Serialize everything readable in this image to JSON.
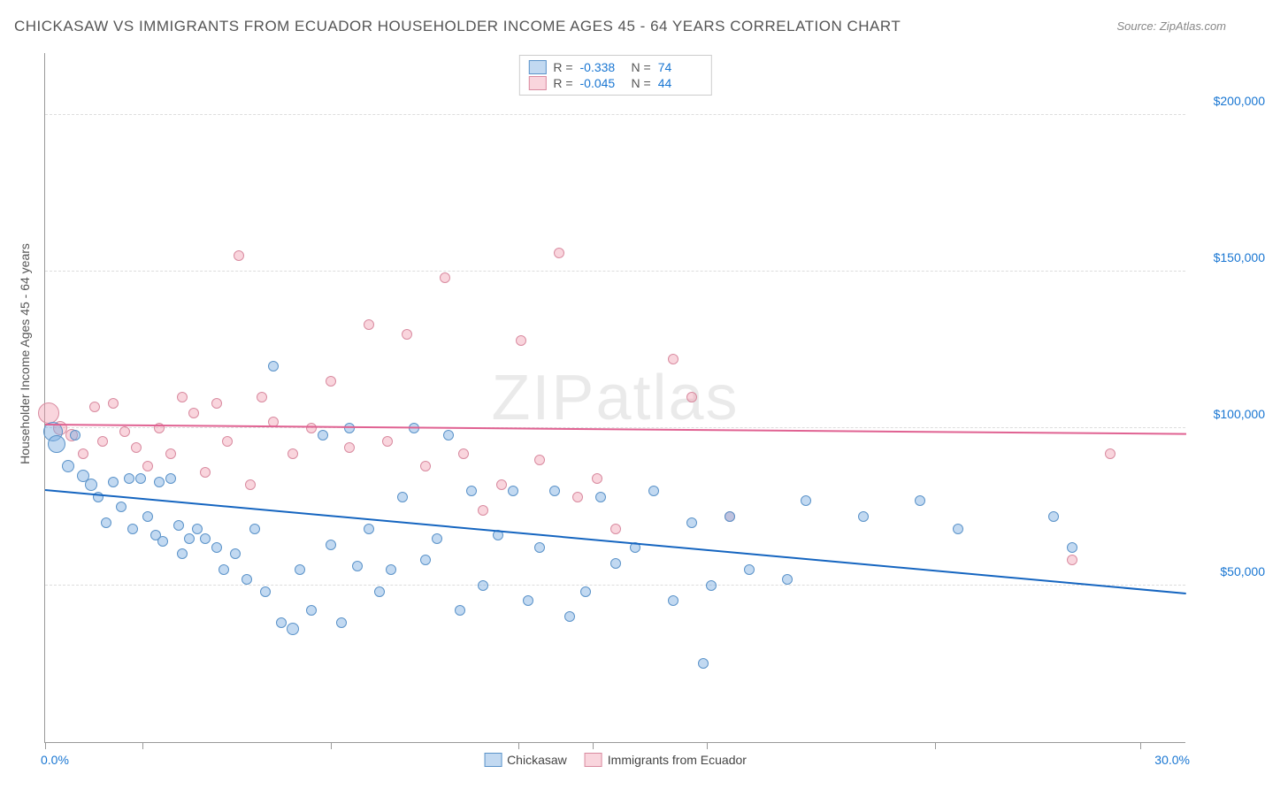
{
  "title": "CHICKASAW VS IMMIGRANTS FROM ECUADOR HOUSEHOLDER INCOME AGES 45 - 64 YEARS CORRELATION CHART",
  "source": "Source: ZipAtlas.com",
  "ylabel": "Householder Income Ages 45 - 64 years",
  "watermark": "ZIPatlas",
  "x": {
    "min": 0.0,
    "max": 30.0,
    "left_label": "0.0%",
    "right_label": "30.0%",
    "tick_positions_pct": [
      0,
      8.5,
      25,
      41.5,
      48,
      58,
      78,
      96
    ]
  },
  "y": {
    "min": 0,
    "max": 220000,
    "gridlines": [
      {
        "value": 50000,
        "label": "$50,000"
      },
      {
        "value": 100000,
        "label": "$100,000"
      },
      {
        "value": 150000,
        "label": "$150,000"
      },
      {
        "value": 200000,
        "label": "$200,000"
      }
    ]
  },
  "series": [
    {
      "name": "Chickasaw",
      "fill": "rgba(120,170,225,0.45)",
      "stroke": "#5b93c9",
      "line_color": "#1565c0",
      "R": "-0.338",
      "N": "74",
      "trend": {
        "y1": 80000,
        "y2": 47000
      },
      "points": [
        {
          "x": 0.2,
          "y": 99000,
          "s": 22
        },
        {
          "x": 0.3,
          "y": 95000,
          "s": 20
        },
        {
          "x": 0.6,
          "y": 88000,
          "s": 14
        },
        {
          "x": 0.8,
          "y": 98000,
          "s": 12
        },
        {
          "x": 1.0,
          "y": 85000,
          "s": 14
        },
        {
          "x": 1.2,
          "y": 82000,
          "s": 14
        },
        {
          "x": 1.4,
          "y": 78000,
          "s": 12
        },
        {
          "x": 1.6,
          "y": 70000,
          "s": 12
        },
        {
          "x": 1.8,
          "y": 83000,
          "s": 12
        },
        {
          "x": 2.0,
          "y": 75000,
          "s": 12
        },
        {
          "x": 2.2,
          "y": 84000,
          "s": 12
        },
        {
          "x": 2.3,
          "y": 68000,
          "s": 12
        },
        {
          "x": 2.5,
          "y": 84000,
          "s": 12
        },
        {
          "x": 2.7,
          "y": 72000,
          "s": 12
        },
        {
          "x": 2.9,
          "y": 66000,
          "s": 12
        },
        {
          "x": 3.0,
          "y": 83000,
          "s": 12
        },
        {
          "x": 3.1,
          "y": 64000,
          "s": 12
        },
        {
          "x": 3.3,
          "y": 84000,
          "s": 12
        },
        {
          "x": 3.5,
          "y": 69000,
          "s": 12
        },
        {
          "x": 3.6,
          "y": 60000,
          "s": 12
        },
        {
          "x": 3.8,
          "y": 65000,
          "s": 12
        },
        {
          "x": 4.0,
          "y": 68000,
          "s": 12
        },
        {
          "x": 4.2,
          "y": 65000,
          "s": 12
        },
        {
          "x": 4.5,
          "y": 62000,
          "s": 12
        },
        {
          "x": 4.7,
          "y": 55000,
          "s": 12
        },
        {
          "x": 5.0,
          "y": 60000,
          "s": 12
        },
        {
          "x": 5.3,
          "y": 52000,
          "s": 12
        },
        {
          "x": 5.5,
          "y": 68000,
          "s": 12
        },
        {
          "x": 5.8,
          "y": 48000,
          "s": 12
        },
        {
          "x": 6.0,
          "y": 120000,
          "s": 12
        },
        {
          "x": 6.2,
          "y": 38000,
          "s": 12
        },
        {
          "x": 6.5,
          "y": 36000,
          "s": 14
        },
        {
          "x": 6.7,
          "y": 55000,
          "s": 12
        },
        {
          "x": 7.0,
          "y": 42000,
          "s": 12
        },
        {
          "x": 7.3,
          "y": 98000,
          "s": 12
        },
        {
          "x": 7.5,
          "y": 63000,
          "s": 12
        },
        {
          "x": 7.8,
          "y": 38000,
          "s": 12
        },
        {
          "x": 8.0,
          "y": 100000,
          "s": 12
        },
        {
          "x": 8.2,
          "y": 56000,
          "s": 12
        },
        {
          "x": 8.5,
          "y": 68000,
          "s": 12
        },
        {
          "x": 8.8,
          "y": 48000,
          "s": 12
        },
        {
          "x": 9.1,
          "y": 55000,
          "s": 12
        },
        {
          "x": 9.4,
          "y": 78000,
          "s": 12
        },
        {
          "x": 9.7,
          "y": 100000,
          "s": 12
        },
        {
          "x": 10.0,
          "y": 58000,
          "s": 12
        },
        {
          "x": 10.3,
          "y": 65000,
          "s": 12
        },
        {
          "x": 10.6,
          "y": 98000,
          "s": 12
        },
        {
          "x": 10.9,
          "y": 42000,
          "s": 12
        },
        {
          "x": 11.2,
          "y": 80000,
          "s": 12
        },
        {
          "x": 11.5,
          "y": 50000,
          "s": 12
        },
        {
          "x": 11.9,
          "y": 66000,
          "s": 12
        },
        {
          "x": 12.3,
          "y": 80000,
          "s": 12
        },
        {
          "x": 12.7,
          "y": 45000,
          "s": 12
        },
        {
          "x": 13.0,
          "y": 62000,
          "s": 12
        },
        {
          "x": 13.4,
          "y": 80000,
          "s": 12
        },
        {
          "x": 13.8,
          "y": 40000,
          "s": 12
        },
        {
          "x": 14.2,
          "y": 48000,
          "s": 12
        },
        {
          "x": 14.6,
          "y": 78000,
          "s": 12
        },
        {
          "x": 15.0,
          "y": 57000,
          "s": 12
        },
        {
          "x": 15.5,
          "y": 62000,
          "s": 12
        },
        {
          "x": 16.0,
          "y": 80000,
          "s": 12
        },
        {
          "x": 16.5,
          "y": 45000,
          "s": 12
        },
        {
          "x": 17.0,
          "y": 70000,
          "s": 12
        },
        {
          "x": 17.3,
          "y": 25000,
          "s": 12
        },
        {
          "x": 17.5,
          "y": 50000,
          "s": 12
        },
        {
          "x": 18.0,
          "y": 72000,
          "s": 12
        },
        {
          "x": 18.5,
          "y": 55000,
          "s": 12
        },
        {
          "x": 19.5,
          "y": 52000,
          "s": 12
        },
        {
          "x": 20.0,
          "y": 77000,
          "s": 12
        },
        {
          "x": 21.5,
          "y": 72000,
          "s": 12
        },
        {
          "x": 23.0,
          "y": 77000,
          "s": 12
        },
        {
          "x": 24.0,
          "y": 68000,
          "s": 12
        },
        {
          "x": 26.5,
          "y": 72000,
          "s": 12
        },
        {
          "x": 27.0,
          "y": 62000,
          "s": 12
        }
      ]
    },
    {
      "name": "Immigrants from Ecuador",
      "fill": "rgba(240,150,170,0.40)",
      "stroke": "#d98ba0",
      "line_color": "#e06292",
      "R": "-0.045",
      "N": "44",
      "trend": {
        "y1": 101000,
        "y2": 98000
      },
      "points": [
        {
          "x": 0.1,
          "y": 105000,
          "s": 24
        },
        {
          "x": 0.4,
          "y": 100000,
          "s": 16
        },
        {
          "x": 0.7,
          "y": 98000,
          "s": 14
        },
        {
          "x": 1.0,
          "y": 92000,
          "s": 12
        },
        {
          "x": 1.3,
          "y": 107000,
          "s": 12
        },
        {
          "x": 1.5,
          "y": 96000,
          "s": 12
        },
        {
          "x": 1.8,
          "y": 108000,
          "s": 12
        },
        {
          "x": 2.1,
          "y": 99000,
          "s": 12
        },
        {
          "x": 2.4,
          "y": 94000,
          "s": 12
        },
        {
          "x": 2.7,
          "y": 88000,
          "s": 12
        },
        {
          "x": 3.0,
          "y": 100000,
          "s": 12
        },
        {
          "x": 3.3,
          "y": 92000,
          "s": 12
        },
        {
          "x": 3.6,
          "y": 110000,
          "s": 12
        },
        {
          "x": 3.9,
          "y": 105000,
          "s": 12
        },
        {
          "x": 4.2,
          "y": 86000,
          "s": 12
        },
        {
          "x": 4.5,
          "y": 108000,
          "s": 12
        },
        {
          "x": 4.8,
          "y": 96000,
          "s": 12
        },
        {
          "x": 5.1,
          "y": 155000,
          "s": 12
        },
        {
          "x": 5.4,
          "y": 82000,
          "s": 12
        },
        {
          "x": 5.7,
          "y": 110000,
          "s": 12
        },
        {
          "x": 6.0,
          "y": 102000,
          "s": 12
        },
        {
          "x": 6.5,
          "y": 92000,
          "s": 12
        },
        {
          "x": 7.0,
          "y": 100000,
          "s": 12
        },
        {
          "x": 7.5,
          "y": 115000,
          "s": 12
        },
        {
          "x": 8.0,
          "y": 94000,
          "s": 12
        },
        {
          "x": 8.5,
          "y": 133000,
          "s": 12
        },
        {
          "x": 9.0,
          "y": 96000,
          "s": 12
        },
        {
          "x": 9.5,
          "y": 130000,
          "s": 12
        },
        {
          "x": 10.0,
          "y": 88000,
          "s": 12
        },
        {
          "x": 10.5,
          "y": 148000,
          "s": 12
        },
        {
          "x": 11.0,
          "y": 92000,
          "s": 12
        },
        {
          "x": 11.5,
          "y": 74000,
          "s": 12
        },
        {
          "x": 12.0,
          "y": 82000,
          "s": 12
        },
        {
          "x": 12.5,
          "y": 128000,
          "s": 12
        },
        {
          "x": 13.0,
          "y": 90000,
          "s": 12
        },
        {
          "x": 13.5,
          "y": 156000,
          "s": 12
        },
        {
          "x": 14.0,
          "y": 78000,
          "s": 12
        },
        {
          "x": 14.5,
          "y": 84000,
          "s": 12
        },
        {
          "x": 15.0,
          "y": 68000,
          "s": 12
        },
        {
          "x": 16.5,
          "y": 122000,
          "s": 12
        },
        {
          "x": 17.0,
          "y": 110000,
          "s": 12
        },
        {
          "x": 18.0,
          "y": 72000,
          "s": 12
        },
        {
          "x": 27.0,
          "y": 58000,
          "s": 12
        },
        {
          "x": 28.0,
          "y": 92000,
          "s": 12
        }
      ]
    }
  ],
  "bottom_legend": [
    {
      "label": "Chickasaw",
      "fill": "rgba(120,170,225,0.45)",
      "stroke": "#5b93c9"
    },
    {
      "label": "Immigrants from Ecuador",
      "fill": "rgba(240,150,170,0.40)",
      "stroke": "#d98ba0"
    }
  ]
}
